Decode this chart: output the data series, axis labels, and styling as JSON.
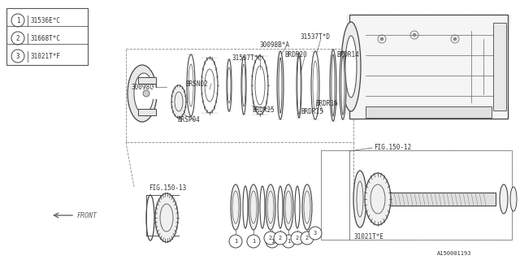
{
  "background_color": "#ffffff",
  "line_color": "#444444",
  "dark_color": "#333333",
  "legend_items": [
    {
      "num": "1",
      "label": "31536E*C"
    },
    {
      "num": "2",
      "label": "31668T*C"
    },
    {
      "num": "3",
      "label": "31021T*F"
    }
  ],
  "fig_width": 6.4,
  "fig_height": 3.2,
  "dpi": 100
}
